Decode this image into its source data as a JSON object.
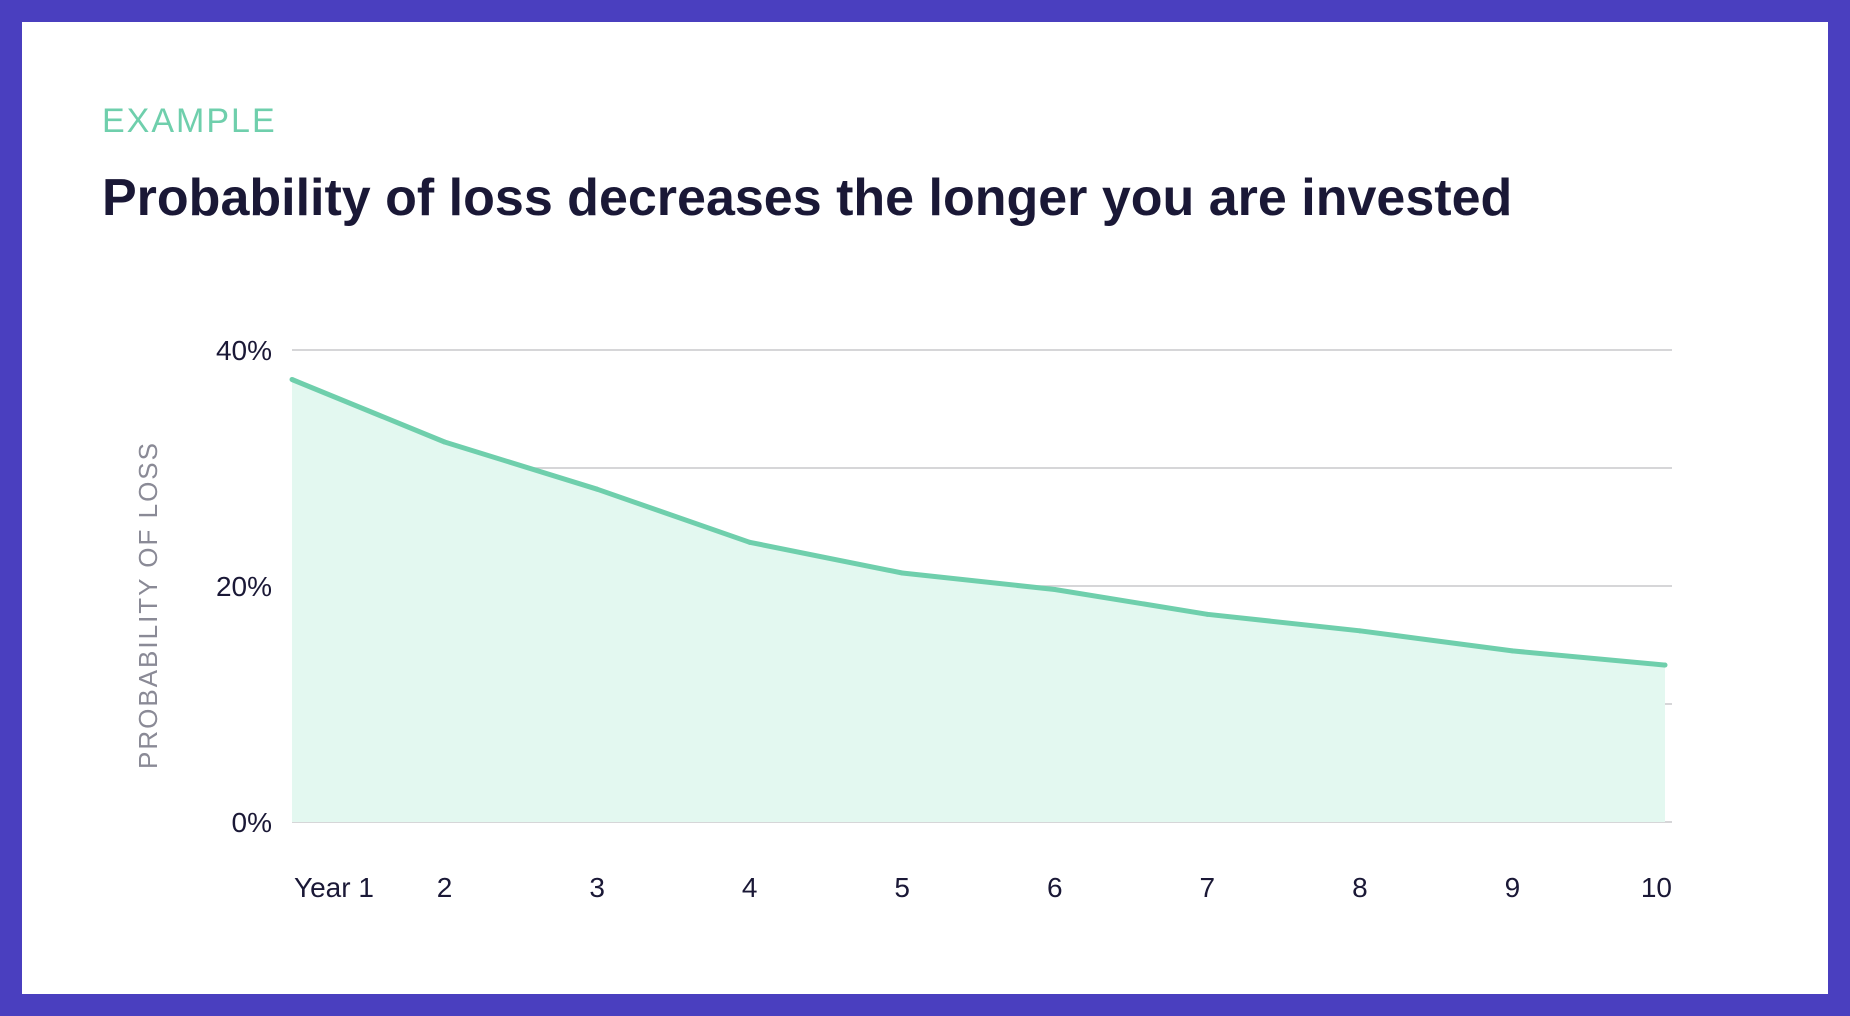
{
  "header": {
    "eyebrow": "EXAMPLE",
    "title": "Probability of loss decreases the longer you are invested"
  },
  "chart_data": {
    "type": "area",
    "title": "Probability of loss decreases the longer you are invested",
    "ylabel": "PROBABILITY OF LOSS",
    "xlabel": "",
    "categories": [
      "Year 1",
      "2",
      "3",
      "4",
      "5",
      "6",
      "7",
      "8",
      "9",
      "10"
    ],
    "values": [
      37.5,
      32.2,
      28.2,
      23.7,
      21.1,
      19.7,
      17.6,
      16.2,
      14.5,
      13.3
    ],
    "ylim": [
      0,
      40
    ],
    "yticks": [
      0,
      20,
      40
    ],
    "ytick_labels": [
      "0%",
      "20%",
      "40%"
    ],
    "gridlines": [
      0,
      10,
      20,
      30,
      40
    ],
    "grid": true,
    "legend": "none",
    "line_color": "#6fcfac",
    "fill_color": "#e3f8f0",
    "grid_color": "#c8c8cc"
  }
}
